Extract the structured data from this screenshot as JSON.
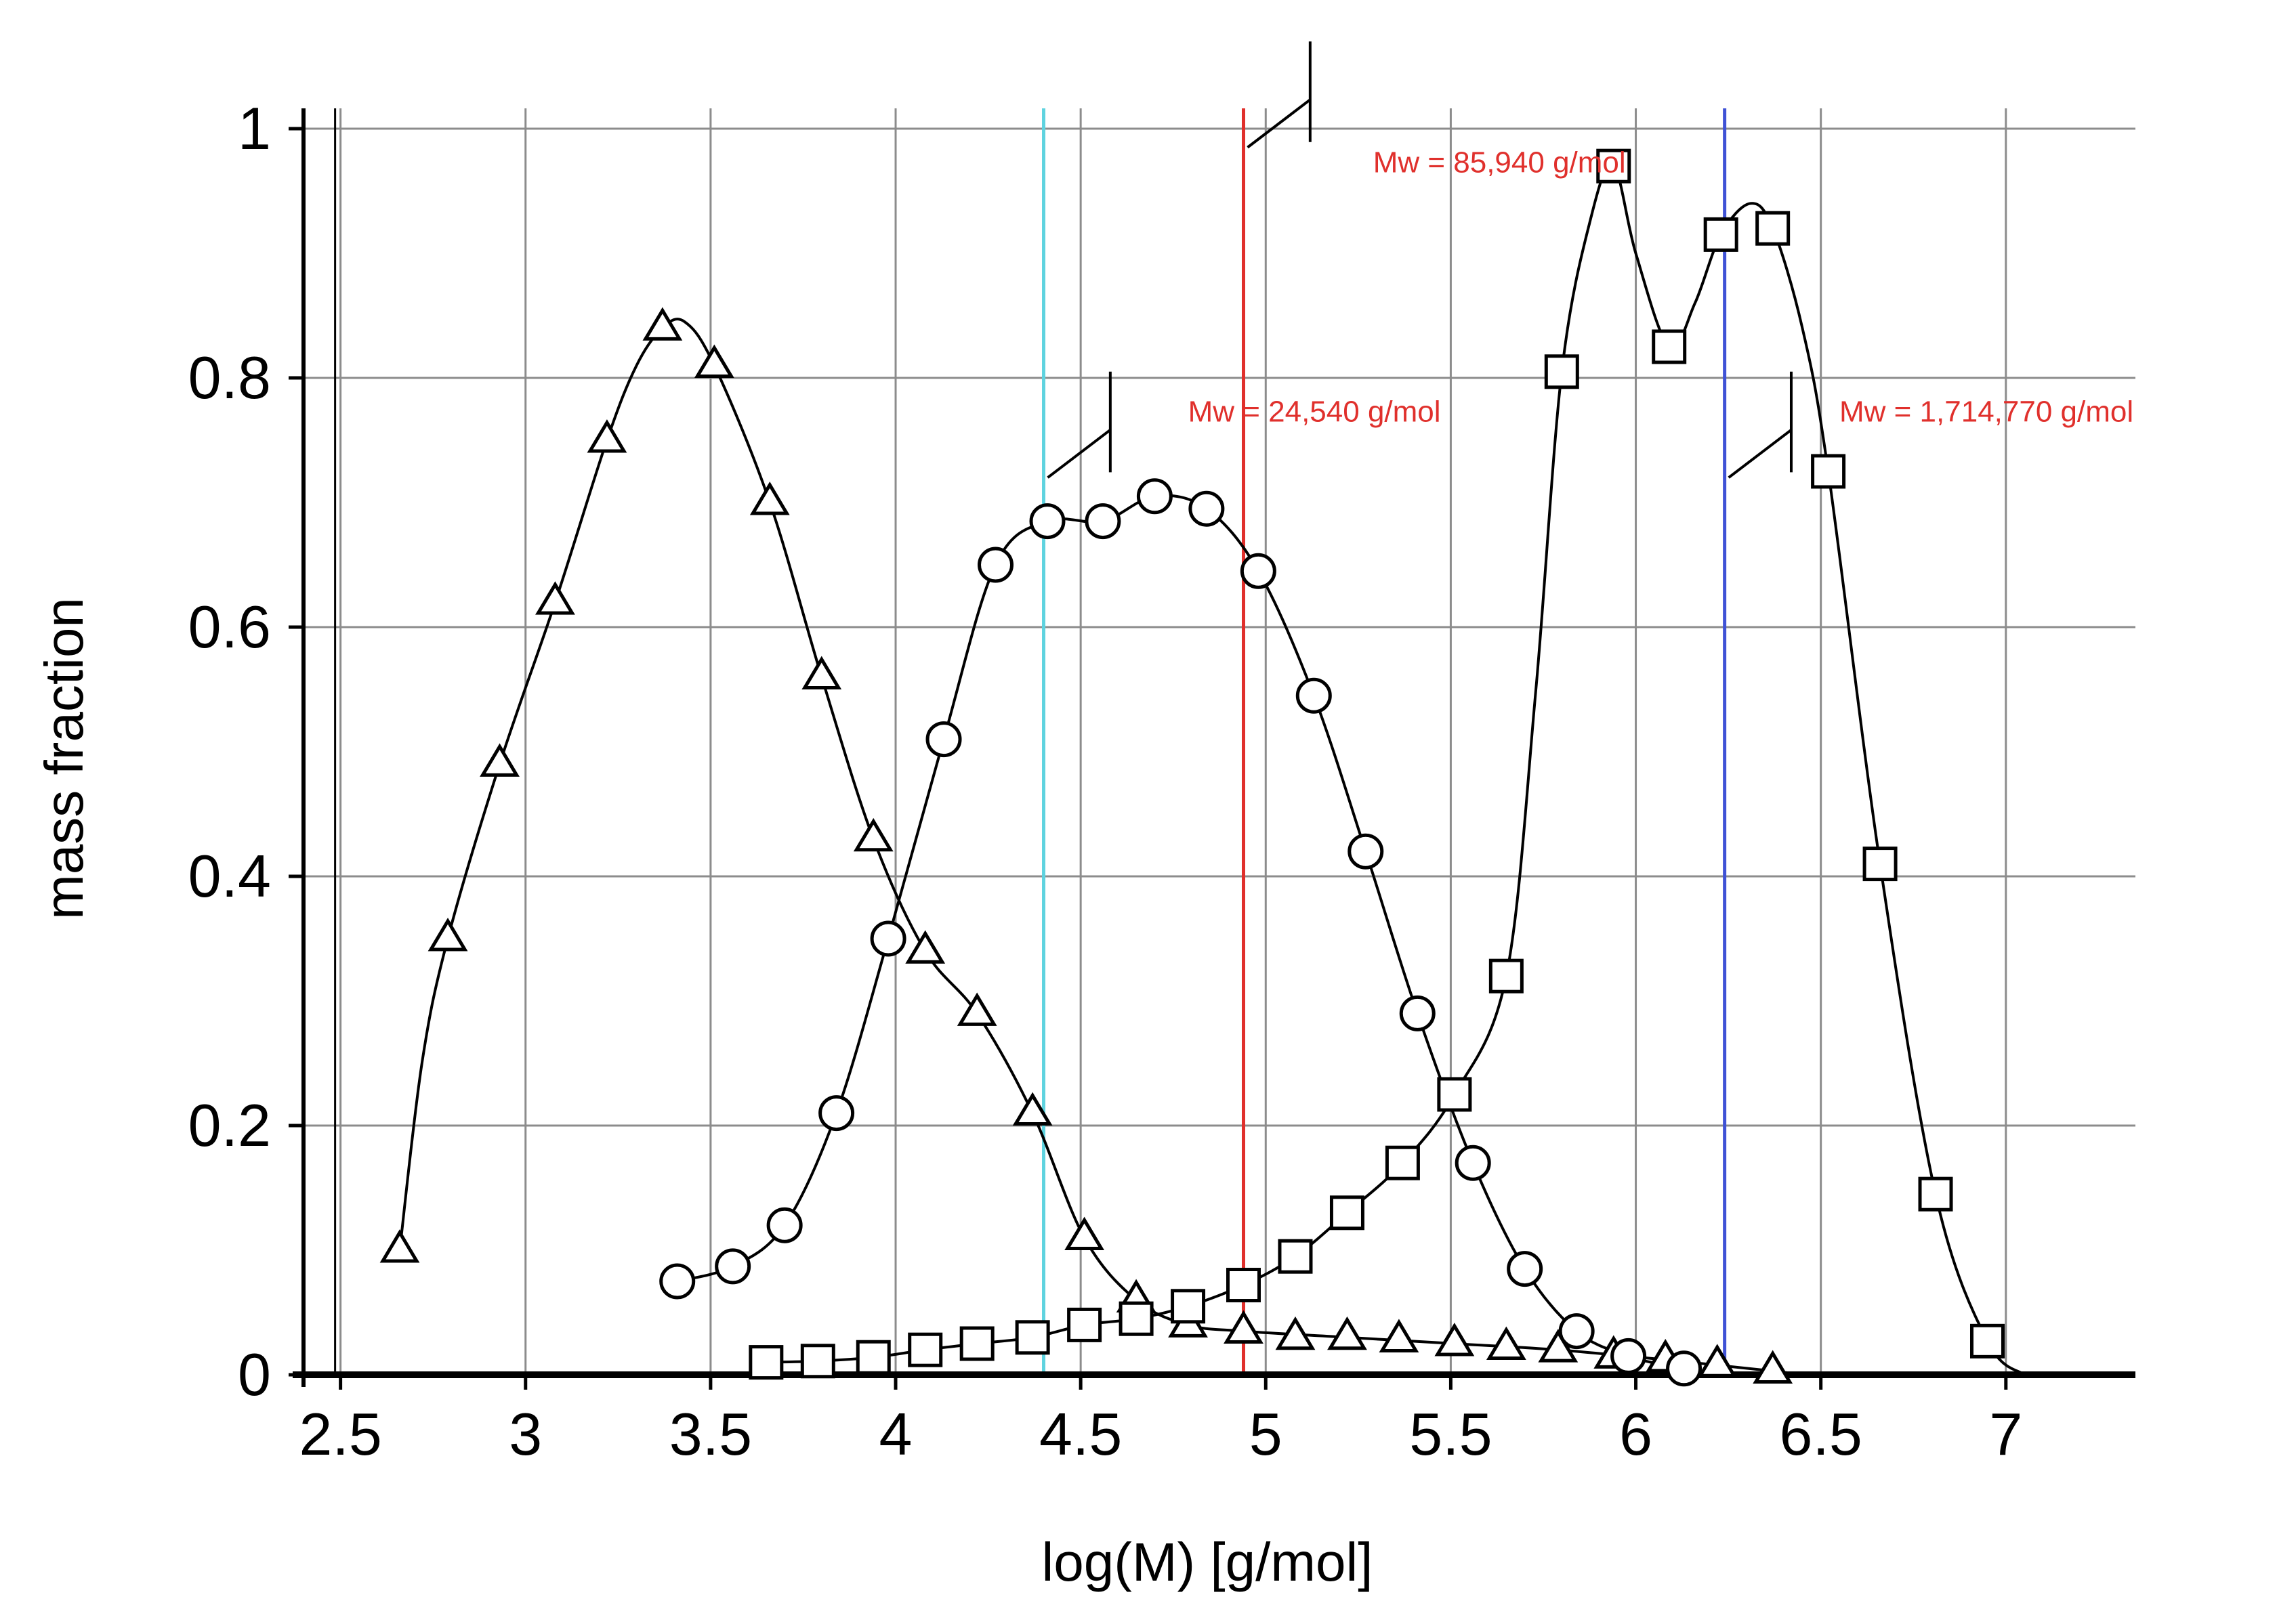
{
  "chart_data": {
    "type": "line",
    "title": "",
    "xlabel": "log(M) [g/mol]",
    "ylabel": "mass fraction",
    "xlim": [
      2.4,
      7.35
    ],
    "ylim": [
      0,
      1.0
    ],
    "grid": true,
    "x_ticks": [
      2.5,
      3,
      3.5,
      4,
      4.5,
      5,
      5.5,
      6,
      6.5,
      7
    ],
    "x_tick_labels": [
      "2.5",
      "3",
      "3.5",
      "4",
      "4.5",
      "5",
      "5.5",
      "6",
      "6.5",
      "7"
    ],
    "y_ticks": [
      0,
      0.2,
      0.4,
      0.6,
      0.8,
      1.0
    ],
    "y_tick_labels": [
      "0",
      "0.2",
      "0.4",
      "0.6",
      "0.8",
      "1"
    ],
    "series": [
      {
        "name": "triangles",
        "marker": "triangle",
        "points": [
          [
            2.66,
            0.1
          ],
          [
            2.79,
            0.35
          ],
          [
            2.93,
            0.49
          ],
          [
            3.08,
            0.62
          ],
          [
            3.22,
            0.75
          ],
          [
            3.37,
            0.84
          ],
          [
            3.51,
            0.81
          ],
          [
            3.66,
            0.7
          ],
          [
            3.8,
            0.56
          ],
          [
            3.94,
            0.43
          ],
          [
            4.08,
            0.34
          ],
          [
            4.22,
            0.29
          ],
          [
            4.37,
            0.21
          ],
          [
            4.51,
            0.11
          ],
          [
            4.65,
            0.06
          ],
          [
            4.79,
            0.04
          ],
          [
            4.94,
            0.035
          ],
          [
            5.08,
            0.03
          ],
          [
            5.22,
            0.03
          ],
          [
            5.36,
            0.028
          ],
          [
            5.51,
            0.025
          ],
          [
            5.65,
            0.022
          ],
          [
            5.79,
            0.02
          ],
          [
            5.94,
            0.015
          ],
          [
            6.08,
            0.012
          ],
          [
            6.22,
            0.008
          ],
          [
            6.37,
            0.003
          ]
        ],
        "curve": [
          [
            2.66,
            0.1
          ],
          [
            2.72,
            0.25
          ],
          [
            2.79,
            0.35
          ],
          [
            2.93,
            0.49
          ],
          [
            3.08,
            0.62
          ],
          [
            3.22,
            0.75
          ],
          [
            3.3,
            0.81
          ],
          [
            3.37,
            0.84
          ],
          [
            3.43,
            0.845
          ],
          [
            3.51,
            0.81
          ],
          [
            3.66,
            0.7
          ],
          [
            3.8,
            0.56
          ],
          [
            3.94,
            0.43
          ],
          [
            4.08,
            0.34
          ],
          [
            4.22,
            0.29
          ],
          [
            4.37,
            0.21
          ],
          [
            4.51,
            0.11
          ],
          [
            4.65,
            0.06
          ],
          [
            4.79,
            0.04
          ],
          [
            4.94,
            0.035
          ],
          [
            5.22,
            0.03
          ],
          [
            5.51,
            0.025
          ],
          [
            5.79,
            0.02
          ],
          [
            6.08,
            0.012
          ],
          [
            6.37,
            0.003
          ],
          [
            6.45,
            0.0
          ]
        ]
      },
      {
        "name": "circles",
        "marker": "circle",
        "points": [
          [
            3.41,
            0.075
          ],
          [
            3.56,
            0.087
          ],
          [
            3.7,
            0.12
          ],
          [
            3.84,
            0.21
          ],
          [
            3.98,
            0.35
          ],
          [
            4.13,
            0.51
          ],
          [
            4.27,
            0.65
          ],
          [
            4.41,
            0.685
          ],
          [
            4.56,
            0.685
          ],
          [
            4.7,
            0.705
          ],
          [
            4.84,
            0.695
          ],
          [
            4.98,
            0.645
          ],
          [
            5.13,
            0.545
          ],
          [
            5.27,
            0.42
          ],
          [
            5.41,
            0.29
          ],
          [
            5.56,
            0.17
          ],
          [
            5.7,
            0.085
          ],
          [
            5.84,
            0.035
          ],
          [
            5.98,
            0.015
          ],
          [
            6.13,
            0.005
          ]
        ],
        "curve": [
          [
            3.41,
            0.075
          ],
          [
            3.56,
            0.087
          ],
          [
            3.7,
            0.12
          ],
          [
            3.84,
            0.21
          ],
          [
            3.98,
            0.35
          ],
          [
            4.13,
            0.51
          ],
          [
            4.27,
            0.65
          ],
          [
            4.41,
            0.685
          ],
          [
            4.56,
            0.685
          ],
          [
            4.7,
            0.705
          ],
          [
            4.84,
            0.695
          ],
          [
            4.98,
            0.645
          ],
          [
            5.13,
            0.545
          ],
          [
            5.27,
            0.42
          ],
          [
            5.41,
            0.29
          ],
          [
            5.56,
            0.17
          ],
          [
            5.7,
            0.085
          ],
          [
            5.84,
            0.035
          ],
          [
            5.98,
            0.015
          ],
          [
            6.13,
            0.005
          ],
          [
            6.25,
            0.0
          ]
        ]
      },
      {
        "name": "squares",
        "marker": "square",
        "points": [
          [
            3.65,
            0.01
          ],
          [
            3.79,
            0.011
          ],
          [
            3.94,
            0.014
          ],
          [
            4.08,
            0.02
          ],
          [
            4.22,
            0.025
          ],
          [
            4.37,
            0.03
          ],
          [
            4.51,
            0.04
          ],
          [
            4.65,
            0.045
          ],
          [
            4.79,
            0.055
          ],
          [
            4.94,
            0.072
          ],
          [
            5.08,
            0.095
          ],
          [
            5.22,
            0.13
          ],
          [
            5.37,
            0.17
          ],
          [
            5.51,
            0.225
          ],
          [
            5.65,
            0.32
          ],
          [
            5.8,
            0.805
          ],
          [
            5.94,
            0.97
          ],
          [
            6.09,
            0.825
          ],
          [
            6.23,
            0.915
          ],
          [
            6.37,
            0.92
          ],
          [
            6.52,
            0.725
          ],
          [
            6.66,
            0.41
          ],
          [
            6.81,
            0.145
          ],
          [
            6.95,
            0.027
          ]
        ],
        "curve": [
          [
            3.65,
            0.01
          ],
          [
            3.79,
            0.011
          ],
          [
            3.94,
            0.014
          ],
          [
            4.08,
            0.02
          ],
          [
            4.22,
            0.025
          ],
          [
            4.37,
            0.03
          ],
          [
            4.51,
            0.04
          ],
          [
            4.65,
            0.045
          ],
          [
            4.79,
            0.055
          ],
          [
            4.94,
            0.072
          ],
          [
            5.08,
            0.095
          ],
          [
            5.22,
            0.13
          ],
          [
            5.37,
            0.17
          ],
          [
            5.51,
            0.225
          ],
          [
            5.65,
            0.32
          ],
          [
            5.73,
            0.55
          ],
          [
            5.8,
            0.805
          ],
          [
            5.88,
            0.93
          ],
          [
            5.94,
            0.97
          ],
          [
            6.0,
            0.9
          ],
          [
            6.09,
            0.825
          ],
          [
            6.16,
            0.86
          ],
          [
            6.23,
            0.915
          ],
          [
            6.31,
            0.94
          ],
          [
            6.37,
            0.92
          ],
          [
            6.45,
            0.84
          ],
          [
            6.52,
            0.725
          ],
          [
            6.66,
            0.41
          ],
          [
            6.81,
            0.145
          ],
          [
            6.95,
            0.027
          ],
          [
            7.05,
            0.0
          ]
        ]
      }
    ],
    "vlines": [
      {
        "x": 4.4,
        "color": "#5fd3df"
      },
      {
        "x": 4.94,
        "color": "#e0302c"
      },
      {
        "x": 6.24,
        "color": "#3f52d6"
      }
    ],
    "annotations": [
      {
        "text": "Mw = 85,940 g/mol",
        "x": 5.29,
        "y": 0.965,
        "color": "#e0302c"
      },
      {
        "text": "Mw = 24,540 g/mol",
        "x": 4.79,
        "y": 0.765,
        "color": "#e0302c"
      },
      {
        "text": "Mw = 1,714,770 g/mol",
        "x": 6.55,
        "y": 0.765,
        "color": "#e0302c"
      }
    ],
    "integral_marks": [
      {
        "x": 4.94,
        "y_low": 0.985,
        "x_top": 5.12,
        "y_high": 1.07
      },
      {
        "x": 4.4,
        "y_low": 0.72,
        "x_top": 4.58,
        "y_high": 0.805
      },
      {
        "x": 6.24,
        "y_low": 0.72,
        "x_top": 6.42,
        "y_high": 0.805
      }
    ]
  }
}
